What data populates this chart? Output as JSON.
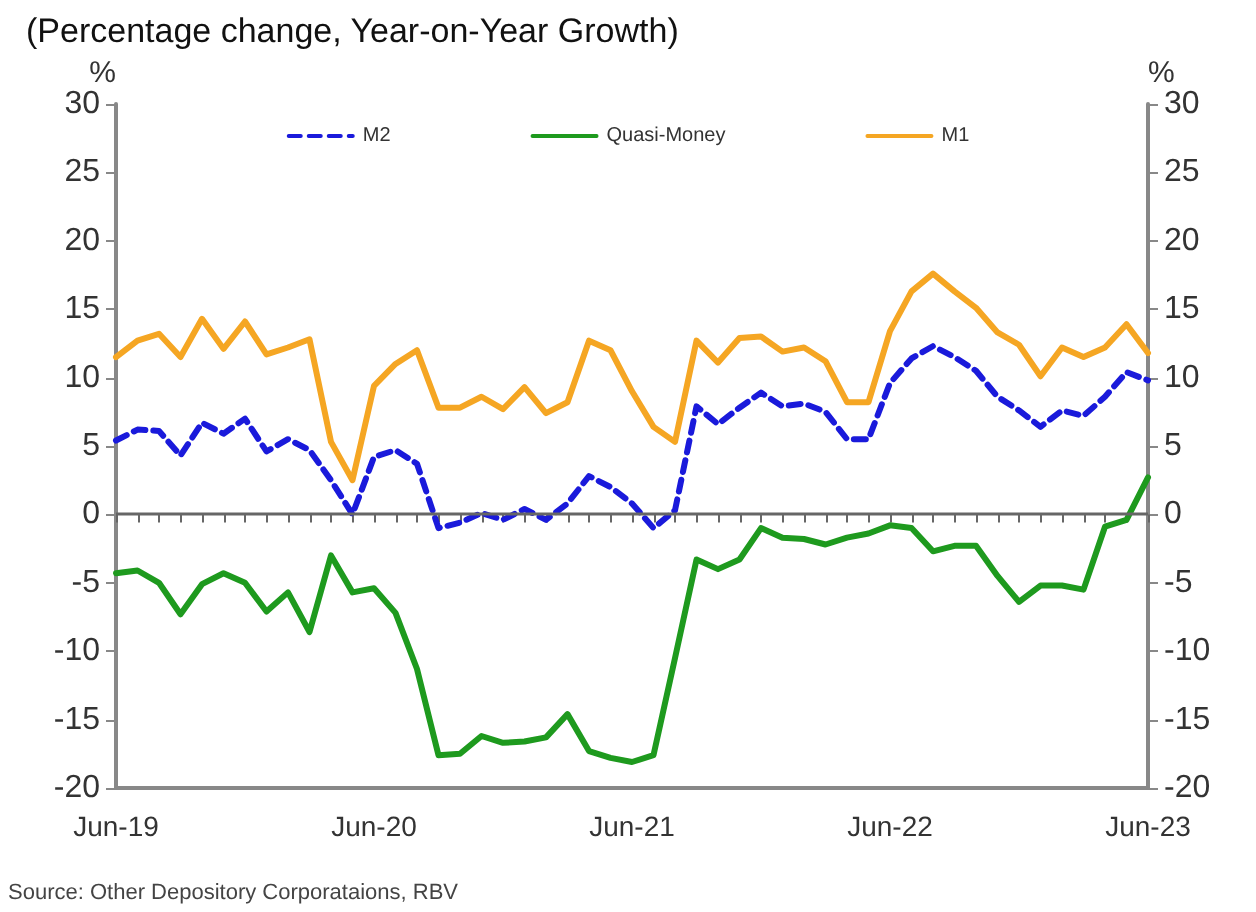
{
  "chart_data": {
    "type": "line",
    "subtitle": "(Percentage change, Year-on-Year Growth)",
    "ylabel": "%",
    "y2label": "%",
    "annotations": [
      "Source: Other Depository Corporataions, RBV"
    ],
    "categories": [
      "Jun-19",
      null,
      null,
      null,
      null,
      null,
      null,
      null,
      null,
      null,
      null,
      null,
      "Jun-20",
      null,
      null,
      null,
      null,
      null,
      null,
      null,
      null,
      null,
      null,
      null,
      "Jun-21",
      null,
      null,
      null,
      null,
      null,
      null,
      null,
      null,
      null,
      null,
      null,
      "Jun-22",
      null,
      null,
      null,
      null,
      null,
      null,
      null,
      null,
      null,
      null,
      null,
      "Jun-23"
    ],
    "series": [
      {
        "name": "M2",
        "color": "#1a1adb",
        "line_style": "dashed",
        "values": [
          5.4,
          6.2,
          6.1,
          4.3,
          6.7,
          5.9,
          7.0,
          4.6,
          5.5,
          4.7,
          2.5,
          0,
          4.2,
          4.7,
          3.7,
          -1.0,
          -0.6,
          0.1,
          -0.4,
          0.4,
          -0.4,
          0.8,
          2.8,
          2.0,
          0.8,
          -1.0,
          0.3,
          7.9,
          6.6,
          7.8,
          8.9,
          7.9,
          8.1,
          7.5,
          5.5,
          5.5,
          9.6,
          11.4,
          12.3,
          11.5,
          10.5,
          8.6,
          7.6,
          6.4,
          7.6,
          7.2,
          8.6,
          10.4,
          9.8
        ]
      },
      {
        "name": "Quasi-Money",
        "color": "#1e9a1e",
        "line_style": "solid",
        "values": [
          -4.3,
          -4.1,
          -5.0,
          -7.3,
          -5.1,
          -4.3,
          -5.0,
          -7.1,
          -5.7,
          -8.6,
          -3.0,
          -5.7,
          -5.4,
          -7.2,
          -11.3,
          -17.6,
          -17.5,
          -16.2,
          -16.7,
          -16.6,
          -16.3,
          -14.6,
          -17.3,
          -17.8,
          -18.1,
          -17.6,
          -10.5,
          -3.3,
          -4.0,
          -3.3,
          -1.0,
          -1.7,
          -1.8,
          -2.2,
          -1.7,
          -1.4,
          -0.8,
          -1.0,
          -2.7,
          -2.3,
          -2.3,
          -4.5,
          -6.4,
          -5.2,
          -5.2,
          -5.5,
          -0.9,
          -0.4,
          2.7
        ]
      },
      {
        "name": "M1",
        "color": "#f5a623",
        "line_style": "solid",
        "values": [
          11.5,
          12.7,
          13.2,
          11.5,
          14.3,
          12.1,
          14.1,
          11.7,
          12.2,
          12.8,
          5.3,
          2.5,
          9.4,
          11.0,
          12.0,
          7.8,
          7.8,
          8.6,
          7.7,
          9.3,
          7.4,
          8.2,
          12.7,
          12.0,
          9.0,
          6.4,
          5.3,
          12.7,
          11.1,
          12.9,
          13.0,
          11.9,
          12.2,
          11.2,
          8.2,
          8.2,
          13.4,
          16.3,
          17.6,
          16.3,
          15.1,
          13.3,
          12.4,
          10.1,
          12.2,
          11.5,
          12.2,
          13.9,
          11.8
        ]
      }
    ],
    "ylim": [
      -20,
      30
    ],
    "yticks": [
      -20,
      -15,
      -10,
      -5,
      0,
      5,
      10,
      15,
      20,
      25,
      30
    ],
    "y2lim": [
      -20,
      30
    ],
    "y2ticks": [
      -20,
      -15,
      -10,
      -5,
      0,
      5,
      10,
      15,
      20,
      25,
      30
    ],
    "ref_lines": [
      {
        "axis": "y",
        "value": 0,
        "color": "#666666"
      }
    ],
    "legend": "top",
    "grid": false,
    "marker": "none"
  }
}
